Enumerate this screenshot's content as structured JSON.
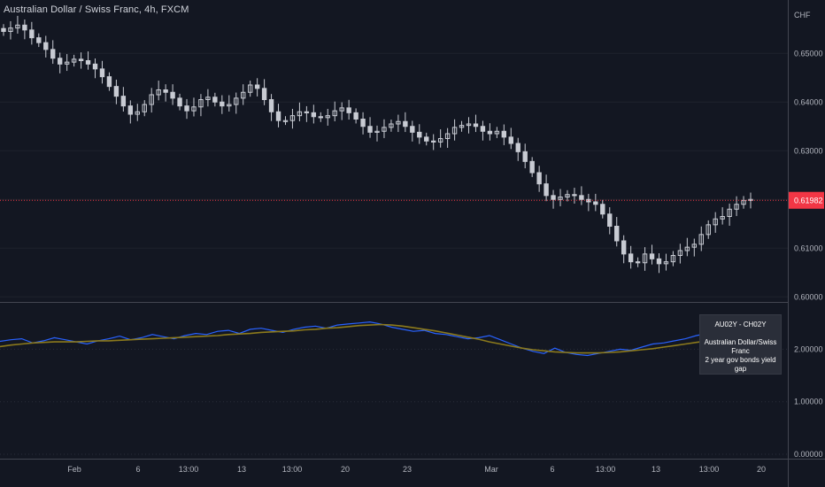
{
  "header": {
    "title": "Australian Dollar / Swiss Franc, 4h, FXCM"
  },
  "price_axis": {
    "unit": "CHF",
    "ticks": [
      "0.65000",
      "0.64000",
      "0.63000",
      "0.62000",
      "0.61000",
      "0.60000"
    ],
    "last_price": "0.61982"
  },
  "lower_axis": {
    "ticks": [
      "2.00000",
      "1.00000",
      "0.00000"
    ]
  },
  "time_axis": {
    "ticks": [
      "Feb",
      "6",
      "13:00",
      "13",
      "13:00",
      "20",
      "23",
      "Mar",
      "6",
      "13:00",
      "13",
      "13:00",
      "20"
    ]
  },
  "annotation": {
    "heading": "AU02Y - CH02Y",
    "line1": "Australian Dollar/Swiss Franc",
    "line2": "2 year gov bonds yield gap"
  },
  "colors": {
    "background": "#131722",
    "candle": "#c8cbd3",
    "price_line": "#f23645",
    "spread_line": "#2962ff",
    "ma_line": "#8c7a1c"
  },
  "chart_data": [
    {
      "type": "line",
      "title": "Australian Dollar / Swiss Franc, 4h, FXCM",
      "ylabel": "CHF",
      "ylim": [
        0.5995,
        0.6595
      ],
      "last_value": 0.61982,
      "x_ticks": [
        "Feb",
        "6",
        "13:00",
        "13",
        "13:00",
        "20",
        "23",
        "Mar",
        "6",
        "13:00",
        "13",
        "13:00",
        "20"
      ],
      "series": [
        {
          "values": [
            0.6545,
            0.6552,
            0.6558,
            0.6548,
            0.6532,
            0.6522,
            0.6508,
            0.649,
            0.6478,
            0.6482,
            0.6488,
            0.6485,
            0.6478,
            0.6468,
            0.6452,
            0.6432,
            0.6412,
            0.6392,
            0.6375,
            0.638,
            0.6395,
            0.6415,
            0.6425,
            0.642,
            0.6408,
            0.6392,
            0.6382,
            0.639,
            0.6405,
            0.641,
            0.64,
            0.6392,
            0.6395,
            0.6408,
            0.642,
            0.6435,
            0.6428,
            0.6405,
            0.638,
            0.6362,
            0.6362,
            0.6372,
            0.638,
            0.6378,
            0.637,
            0.6368,
            0.6372,
            0.6382,
            0.6388,
            0.6378,
            0.6365,
            0.635,
            0.6338,
            0.634,
            0.6348,
            0.6355,
            0.636,
            0.635,
            0.6338,
            0.6328,
            0.632,
            0.6318,
            0.6325,
            0.6335,
            0.6348,
            0.6352,
            0.6355,
            0.635,
            0.634,
            0.6335,
            0.634,
            0.6328,
            0.6315,
            0.6298,
            0.6278,
            0.6255,
            0.6232,
            0.6208,
            0.62,
            0.6205,
            0.621,
            0.6208,
            0.62,
            0.6195,
            0.619,
            0.617,
            0.6145,
            0.6115,
            0.6088,
            0.6072,
            0.607,
            0.6088,
            0.6078,
            0.6068,
            0.6072,
            0.6085,
            0.6095,
            0.6102,
            0.6108,
            0.6128,
            0.6148,
            0.616,
            0.6165,
            0.618,
            0.619,
            0.6198,
            0.62
          ]
        }
      ]
    },
    {
      "type": "line",
      "ylim": [
        -0.05,
        2.85
      ],
      "annotations": [
        "AU02Y - CH02Y",
        "Australian Dollar/Swiss Franc 2 year gov bonds yield gap"
      ],
      "series": [
        {
          "values": [
            2.15,
            2.18,
            2.2,
            2.12,
            2.16,
            2.22,
            2.18,
            2.14,
            2.1,
            2.16,
            2.2,
            2.25,
            2.18,
            2.22,
            2.28,
            2.24,
            2.2,
            2.26,
            2.3,
            2.28,
            2.34,
            2.36,
            2.3,
            2.38,
            2.4,
            2.36,
            2.32,
            2.38,
            2.42,
            2.44,
            2.4,
            2.46,
            2.48,
            2.5,
            2.52,
            2.48,
            2.42,
            2.38,
            2.34,
            2.36,
            2.3,
            2.28,
            2.24,
            2.2,
            2.22,
            2.26,
            2.18,
            2.1,
            2.02,
            1.96,
            1.92,
            2.02,
            1.94,
            1.9,
            1.88,
            1.92,
            1.96,
            2.0,
            1.98,
            2.04,
            2.1,
            2.12,
            2.16,
            2.2,
            2.26,
            2.3,
            2.34,
            2.38,
            2.4,
            2.42
          ]
        },
        {
          "values": [
            2.05,
            2.08,
            2.1,
            2.12,
            2.13,
            2.14,
            2.14,
            2.14,
            2.15,
            2.16,
            2.16,
            2.17,
            2.18,
            2.19,
            2.2,
            2.21,
            2.22,
            2.23,
            2.24,
            2.25,
            2.26,
            2.28,
            2.29,
            2.3,
            2.32,
            2.33,
            2.34,
            2.35,
            2.37,
            2.38,
            2.4,
            2.41,
            2.43,
            2.45,
            2.46,
            2.47,
            2.46,
            2.44,
            2.41,
            2.38,
            2.35,
            2.31,
            2.27,
            2.23,
            2.19,
            2.14,
            2.1,
            2.06,
            2.02,
            1.99,
            1.97,
            1.95,
            1.94,
            1.93,
            1.93,
            1.93,
            1.94,
            1.95,
            1.97,
            1.99,
            2.01,
            2.04,
            2.07,
            2.1,
            2.13,
            2.16,
            2.19,
            2.21,
            2.23,
            2.24
          ]
        }
      ]
    }
  ]
}
